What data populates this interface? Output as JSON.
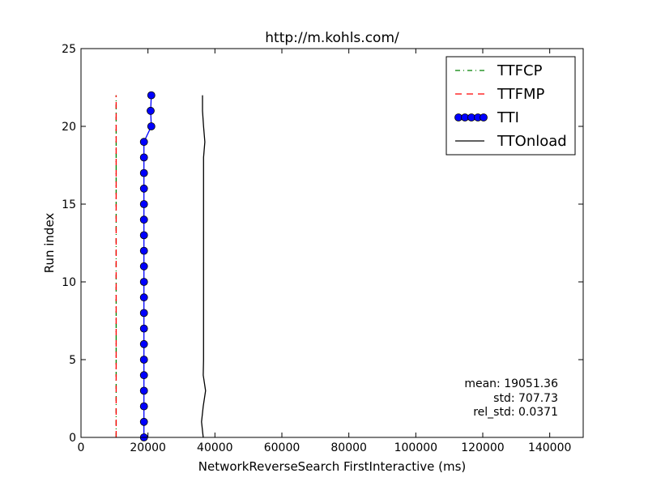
{
  "chart_data": {
    "type": "line",
    "title": "http://m.kohls.com/",
    "xlabel": "NetworkReverseSearch FirstInteractive (ms)",
    "ylabel": "Run index",
    "xlim": [
      0,
      150000
    ],
    "ylim": [
      0,
      25
    ],
    "xticks": [
      0,
      20000,
      40000,
      60000,
      80000,
      100000,
      120000,
      140000
    ],
    "xtick_labels": [
      "0",
      "20000",
      "40000",
      "60000",
      "80000",
      "100000",
      "120000",
      "140000"
    ],
    "yticks": [
      0,
      5,
      10,
      15,
      20,
      25
    ],
    "ytick_labels": [
      "0",
      "5",
      "10",
      "15",
      "20",
      "25"
    ],
    "grid": false,
    "legend_position": "top-right",
    "series": [
      {
        "name": "TTFCP",
        "color": "#008000",
        "style": "dash-dot",
        "marker": "none",
        "x": [
          10500,
          10500,
          10500,
          10500,
          10500,
          10500,
          10500,
          10500,
          10500,
          10500,
          10500,
          10500,
          10500,
          10500,
          10500,
          10500,
          10500,
          10500,
          10500,
          10500,
          10500,
          10500,
          10500
        ],
        "y": [
          0,
          1,
          2,
          3,
          4,
          5,
          6,
          7,
          8,
          9,
          10,
          11,
          12,
          13,
          14,
          15,
          16,
          17,
          18,
          19,
          20,
          21,
          22
        ]
      },
      {
        "name": "TTFMP",
        "color": "#ff0000",
        "style": "dashed",
        "marker": "none",
        "x": [
          10500,
          10500,
          10500,
          10500,
          10500,
          10500,
          10500,
          10500,
          10500,
          10500,
          10500,
          10500,
          10500,
          10500,
          10500,
          10500,
          10500,
          10500,
          10500,
          10500,
          10500,
          10500,
          10500
        ],
        "y": [
          0,
          1,
          2,
          3,
          4,
          5,
          6,
          7,
          8,
          9,
          10,
          11,
          12,
          13,
          14,
          15,
          16,
          17,
          18,
          19,
          20,
          21,
          22
        ]
      },
      {
        "name": "TTI",
        "color": "#0000ff",
        "style": "solid",
        "marker": "circle",
        "x": [
          18800,
          18800,
          18800,
          18800,
          18800,
          18800,
          18800,
          18800,
          18800,
          18800,
          18800,
          18800,
          18800,
          18800,
          18800,
          18800,
          18800,
          18800,
          18800,
          18800,
          21000,
          20800,
          21000
        ],
        "y": [
          0,
          1,
          2,
          3,
          4,
          5,
          6,
          7,
          8,
          9,
          10,
          11,
          12,
          13,
          14,
          15,
          16,
          17,
          18,
          19,
          20,
          21,
          22
        ]
      },
      {
        "name": "TTOnload",
        "color": "#000000",
        "style": "solid",
        "marker": "none",
        "x": [
          36500,
          36000,
          36500,
          37200,
          36500,
          36600,
          36600,
          36600,
          36600,
          36600,
          36600,
          36600,
          36600,
          36600,
          36600,
          36600,
          36600,
          36600,
          36600,
          37000,
          36600,
          36300,
          36300
        ],
        "y": [
          0,
          1,
          2,
          3,
          4,
          5,
          6,
          7,
          8,
          9,
          10,
          11,
          12,
          13,
          14,
          15,
          16,
          17,
          18,
          19,
          20,
          21,
          22
        ]
      }
    ],
    "annotations": [
      "mean: 19051.36",
      "std: 707.73",
      "rel_std: 0.0371"
    ]
  }
}
